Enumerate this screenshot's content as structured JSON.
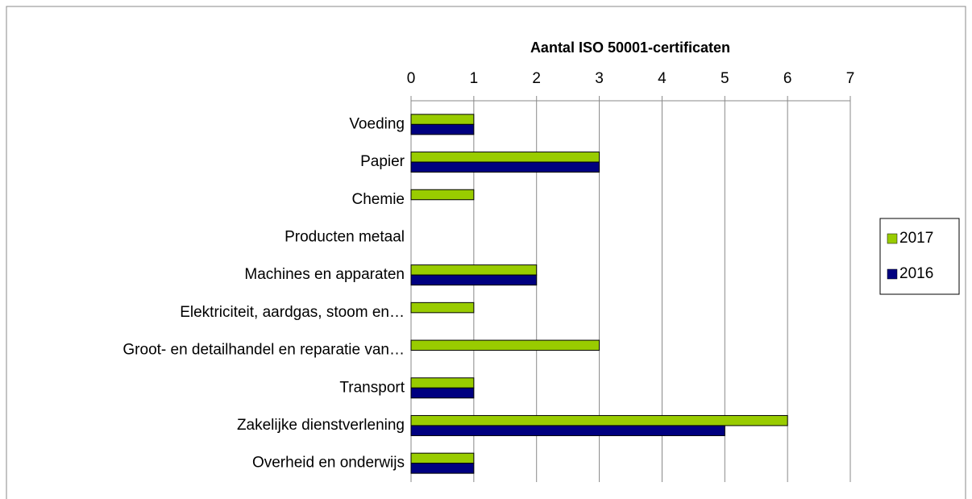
{
  "chart_data": {
    "type": "bar",
    "orientation": "horizontal",
    "title": "Aantal ISO 50001-certificaten",
    "categories": [
      "Voeding",
      "Papier",
      "Chemie",
      "Producten metaal",
      "Machines en apparaten",
      "Elektriciteit, aardgas, stoom en…",
      "Groot- en detailhandel en reparatie van…",
      "Transport",
      "Zakelijke dienstverlening",
      "Overheid en onderwijs"
    ],
    "series": [
      {
        "name": "2017",
        "color": "#99cc00",
        "values": [
          1,
          3,
          1,
          0,
          2,
          1,
          3,
          1,
          6,
          1
        ]
      },
      {
        "name": "2016",
        "color": "#000080",
        "values": [
          1,
          3,
          0,
          0,
          2,
          0,
          0,
          1,
          5,
          1
        ]
      }
    ],
    "xlim": [
      0,
      7
    ],
    "xticks": [
      0,
      1,
      2,
      3,
      4,
      5,
      6,
      7
    ],
    "grid": true,
    "legend": "right"
  }
}
